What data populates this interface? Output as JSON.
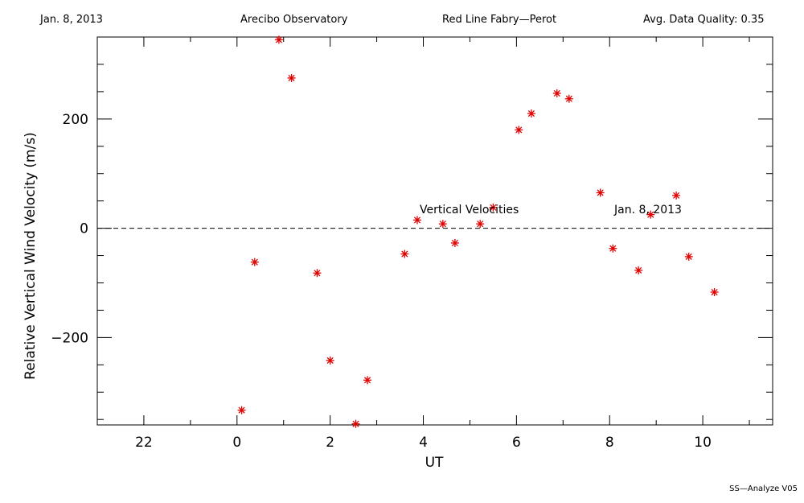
{
  "header": {
    "date": "Jan. 8, 2013",
    "site": "Arecibo Observatory",
    "instrument": "Red Line Fabry—Perot",
    "quality": "Avg. Data Quality: 0.35"
  },
  "footer": {
    "version": "SS—Analyze V05"
  },
  "colors": {
    "marker": "#e00000",
    "axis": "#000000",
    "zero_line": "#000000"
  },
  "chart_data": {
    "type": "scatter",
    "xlabel": "UT",
    "ylabel": "Relative Vertical Wind Velocity (m/s)",
    "annotations": [
      "Vertical Velocities",
      "Jan. 8, 2013"
    ],
    "xlim": [
      21.0,
      11.5
    ],
    "ylim": [
      -360,
      350
    ],
    "x_ticks": [
      {
        "value": 22,
        "label": "22"
      },
      {
        "value": 0,
        "label": "0"
      },
      {
        "value": 2,
        "label": "2"
      },
      {
        "value": 4,
        "label": "4"
      },
      {
        "value": 6,
        "label": "6"
      },
      {
        "value": 8,
        "label": "8"
      },
      {
        "value": 10,
        "label": "10"
      }
    ],
    "y_ticks": [
      {
        "value": 200,
        "label": "200"
      },
      {
        "value": 0,
        "label": "0"
      },
      {
        "value": -200,
        "label": "−200"
      }
    ],
    "zero_line": true,
    "grid": false,
    "series": [
      {
        "marker": "asterisk",
        "x": [
          0.1,
          0.38,
          0.9,
          1.17,
          1.72,
          2.0,
          2.55,
          2.8,
          3.6,
          3.87,
          4.42,
          4.68,
          5.22,
          5.5,
          6.05,
          6.32,
          6.87,
          7.13,
          7.8,
          8.07,
          8.62,
          8.88,
          9.43,
          9.7,
          10.25
        ],
        "y": [
          -333,
          -62,
          345,
          275,
          -82,
          -242,
          -358,
          -278,
          -47,
          15,
          8,
          -27,
          8,
          38,
          180,
          210,
          247,
          237,
          65,
          -37,
          -77,
          25,
          60,
          -52,
          -117
        ]
      }
    ]
  }
}
